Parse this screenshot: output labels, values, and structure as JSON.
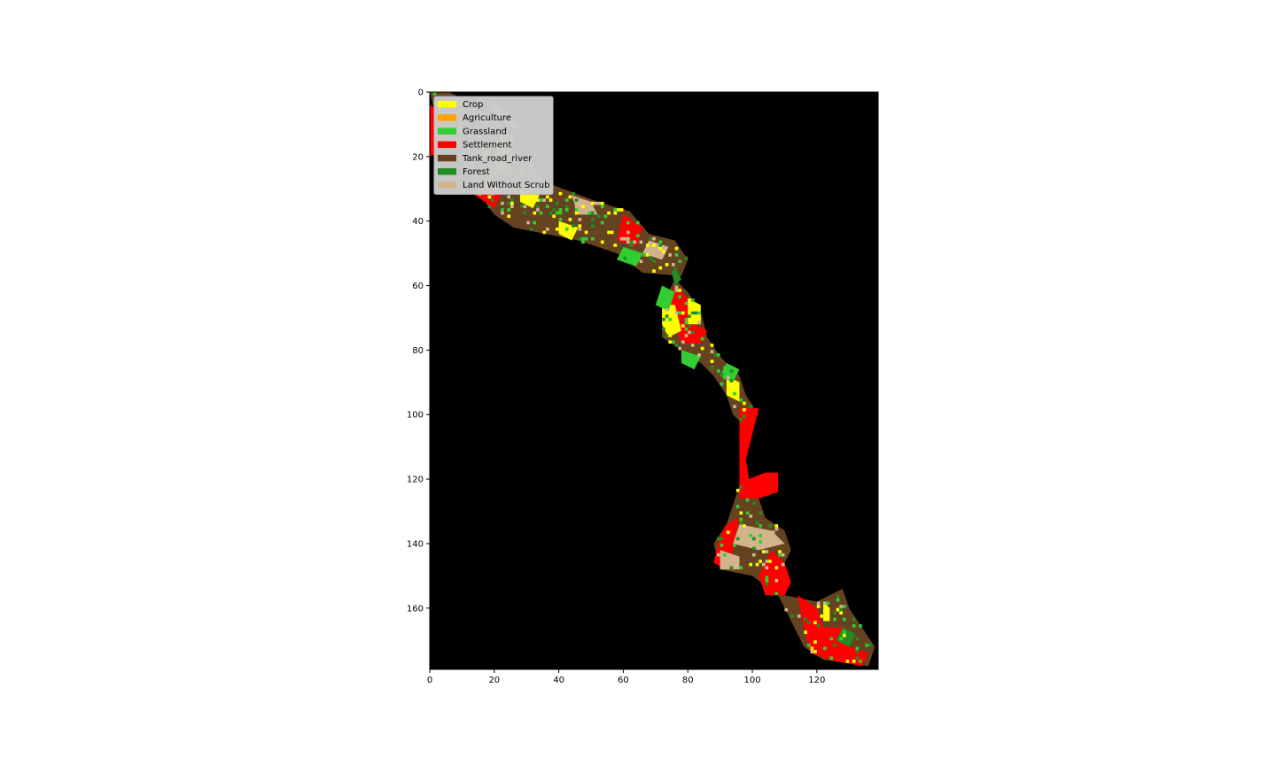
{
  "chart_data": {
    "type": "heatmap",
    "title": "",
    "xlabel": "",
    "ylabel": "",
    "xlim": [
      0,
      139
    ],
    "ylim": [
      179,
      0
    ],
    "x_ticks": [
      "0",
      "20",
      "40",
      "60",
      "80",
      "100",
      "120"
    ],
    "y_ticks": [
      "0",
      "20",
      "40",
      "60",
      "80",
      "100",
      "120",
      "140",
      "160"
    ],
    "background_color": "#000000",
    "legend_position": "upper-left",
    "legend": [
      {
        "label": "Crop",
        "color": "#ffff00"
      },
      {
        "label": "Agriculture",
        "color": "#ffa500"
      },
      {
        "label": "Grassland",
        "color": "#32cd32"
      },
      {
        "label": "Settlement",
        "color": "#ff0000"
      },
      {
        "label": "Tank_road_river",
        "color": "#654321"
      },
      {
        "label": "Forest",
        "color": "#228b22"
      },
      {
        "label": "Land Without Scrub",
        "color": "#d2b48c"
      }
    ],
    "regions": [
      {
        "class": "Tank_road_river",
        "polygon": [
          [
            0,
            0
          ],
          [
            6,
            0
          ],
          [
            14,
            4
          ],
          [
            22,
            10
          ],
          [
            30,
            20
          ],
          [
            36,
            28
          ],
          [
            44,
            31
          ],
          [
            52,
            34
          ],
          [
            62,
            37
          ],
          [
            68,
            44
          ],
          [
            76,
            46
          ],
          [
            80,
            52
          ],
          [
            78,
            57
          ],
          [
            66,
            56
          ],
          [
            58,
            50
          ],
          [
            46,
            46
          ],
          [
            36,
            44
          ],
          [
            26,
            42
          ],
          [
            20,
            38
          ],
          [
            14,
            30
          ],
          [
            8,
            18
          ],
          [
            2,
            8
          ]
        ]
      },
      {
        "class": "Tank_road_river",
        "polygon": [
          [
            76,
            58
          ],
          [
            80,
            62
          ],
          [
            84,
            68
          ],
          [
            86,
            76
          ],
          [
            90,
            82
          ],
          [
            96,
            88
          ],
          [
            98,
            94
          ],
          [
            102,
            100
          ],
          [
            98,
            104
          ],
          [
            94,
            100
          ],
          [
            92,
            94
          ],
          [
            88,
            88
          ],
          [
            84,
            84
          ],
          [
            78,
            80
          ],
          [
            72,
            76
          ],
          [
            72,
            68
          ],
          [
            74,
            62
          ]
        ]
      },
      {
        "class": "Tank_road_river",
        "polygon": [
          [
            96,
            122
          ],
          [
            102,
            126
          ],
          [
            104,
            132
          ],
          [
            110,
            136
          ],
          [
            112,
            142
          ],
          [
            108,
            150
          ],
          [
            110,
            156
          ],
          [
            120,
            158
          ],
          [
            128,
            154
          ],
          [
            130,
            160
          ],
          [
            134,
            166
          ],
          [
            138,
            172
          ],
          [
            136,
            178
          ],
          [
            122,
            176
          ],
          [
            116,
            172
          ],
          [
            112,
            164
          ],
          [
            108,
            156
          ],
          [
            100,
            150
          ],
          [
            90,
            148
          ],
          [
            88,
            140
          ],
          [
            92,
            134
          ]
        ]
      },
      {
        "class": "Settlement",
        "polygon": [
          [
            0,
            4
          ],
          [
            8,
            8
          ],
          [
            4,
            18
          ],
          [
            0,
            20
          ]
        ]
      },
      {
        "class": "Settlement",
        "polygon": [
          [
            16,
            28
          ],
          [
            22,
            32
          ],
          [
            20,
            36
          ],
          [
            14,
            32
          ]
        ]
      },
      {
        "class": "Settlement",
        "polygon": [
          [
            60,
            38
          ],
          [
            66,
            42
          ],
          [
            64,
            48
          ],
          [
            58,
            46
          ]
        ]
      },
      {
        "class": "Settlement",
        "polygon": [
          [
            76,
            60
          ],
          [
            80,
            64
          ],
          [
            82,
            72
          ],
          [
            86,
            74
          ],
          [
            84,
            78
          ],
          [
            78,
            78
          ],
          [
            76,
            72
          ],
          [
            74,
            66
          ]
        ]
      },
      {
        "class": "Settlement",
        "polygon": [
          [
            96,
            98
          ],
          [
            102,
            98
          ],
          [
            100,
            106
          ],
          [
            98,
            114
          ],
          [
            99,
            120
          ],
          [
            104,
            118
          ],
          [
            108,
            118
          ],
          [
            108,
            124
          ],
          [
            102,
            126
          ],
          [
            96,
            126
          ],
          [
            96,
            116
          ]
        ]
      },
      {
        "class": "Settlement",
        "polygon": [
          [
            92,
            134
          ],
          [
            96,
            132
          ],
          [
            94,
            142
          ],
          [
            92,
            148
          ],
          [
            88,
            146
          ],
          [
            90,
            138
          ]
        ]
      },
      {
        "class": "Settlement",
        "polygon": [
          [
            106,
            142
          ],
          [
            110,
            146
          ],
          [
            112,
            152
          ],
          [
            110,
            156
          ],
          [
            104,
            156
          ],
          [
            102,
            150
          ]
        ]
      },
      {
        "class": "Settlement",
        "polygon": [
          [
            114,
            156
          ],
          [
            120,
            160
          ],
          [
            122,
            166
          ],
          [
            128,
            166
          ],
          [
            130,
            172
          ],
          [
            136,
            174
          ],
          [
            134,
            178
          ],
          [
            124,
            176
          ],
          [
            118,
            174
          ],
          [
            116,
            166
          ]
        ]
      },
      {
        "class": "Crop",
        "polygon": [
          [
            22,
            12
          ],
          [
            26,
            14
          ],
          [
            24,
            24
          ],
          [
            20,
            24
          ]
        ]
      },
      {
        "class": "Crop",
        "polygon": [
          [
            28,
            30
          ],
          [
            34,
            32
          ],
          [
            32,
            36
          ],
          [
            28,
            34
          ]
        ]
      },
      {
        "class": "Crop",
        "polygon": [
          [
            40,
            40
          ],
          [
            46,
            42
          ],
          [
            44,
            46
          ],
          [
            40,
            44
          ]
        ]
      },
      {
        "class": "Crop",
        "polygon": [
          [
            72,
            66
          ],
          [
            76,
            66
          ],
          [
            78,
            74
          ],
          [
            74,
            76
          ],
          [
            72,
            72
          ]
        ]
      },
      {
        "class": "Crop",
        "polygon": [
          [
            80,
            64
          ],
          [
            84,
            66
          ],
          [
            84,
            72
          ],
          [
            80,
            72
          ]
        ]
      },
      {
        "class": "Crop",
        "polygon": [
          [
            92,
            88
          ],
          [
            96,
            90
          ],
          [
            96,
            96
          ],
          [
            92,
            94
          ]
        ]
      },
      {
        "class": "Crop",
        "polygon": [
          [
            122,
            158
          ],
          [
            124,
            160
          ],
          [
            124,
            164
          ],
          [
            122,
            164
          ]
        ]
      },
      {
        "class": "Land Without Scrub",
        "polygon": [
          [
            18,
            2
          ],
          [
            24,
            6
          ],
          [
            28,
            12
          ],
          [
            24,
            10
          ],
          [
            20,
            6
          ]
        ]
      },
      {
        "class": "Land Without Scrub",
        "polygon": [
          [
            44,
            32
          ],
          [
            50,
            34
          ],
          [
            52,
            38
          ],
          [
            46,
            38
          ]
        ]
      },
      {
        "class": "Land Without Scrub",
        "polygon": [
          [
            68,
            46
          ],
          [
            74,
            48
          ],
          [
            72,
            52
          ],
          [
            66,
            50
          ]
        ]
      },
      {
        "class": "Land Without Scrub",
        "polygon": [
          [
            96,
            134
          ],
          [
            106,
            136
          ],
          [
            110,
            140
          ],
          [
            102,
            142
          ],
          [
            94,
            140
          ]
        ]
      },
      {
        "class": "Land Without Scrub",
        "polygon": [
          [
            90,
            142
          ],
          [
            96,
            144
          ],
          [
            96,
            148
          ],
          [
            90,
            148
          ]
        ]
      },
      {
        "class": "Grassland",
        "polygon": [
          [
            60,
            48
          ],
          [
            66,
            50
          ],
          [
            64,
            54
          ],
          [
            58,
            52
          ]
        ]
      },
      {
        "class": "Grassland",
        "polygon": [
          [
            72,
            60
          ],
          [
            76,
            62
          ],
          [
            74,
            68
          ],
          [
            70,
            66
          ]
        ]
      },
      {
        "class": "Grassland",
        "polygon": [
          [
            78,
            80
          ],
          [
            84,
            82
          ],
          [
            82,
            86
          ],
          [
            78,
            84
          ]
        ]
      },
      {
        "class": "Grassland",
        "polygon": [
          [
            92,
            84
          ],
          [
            96,
            86
          ],
          [
            94,
            90
          ],
          [
            90,
            88
          ]
        ]
      },
      {
        "class": "Forest",
        "polygon": [
          [
            76,
            54
          ],
          [
            78,
            58
          ],
          [
            76,
            60
          ],
          [
            75,
            56
          ]
        ]
      },
      {
        "class": "Forest",
        "polygon": [
          [
            128,
            166
          ],
          [
            132,
            168
          ],
          [
            130,
            172
          ],
          [
            126,
            170
          ]
        ]
      }
    ]
  }
}
